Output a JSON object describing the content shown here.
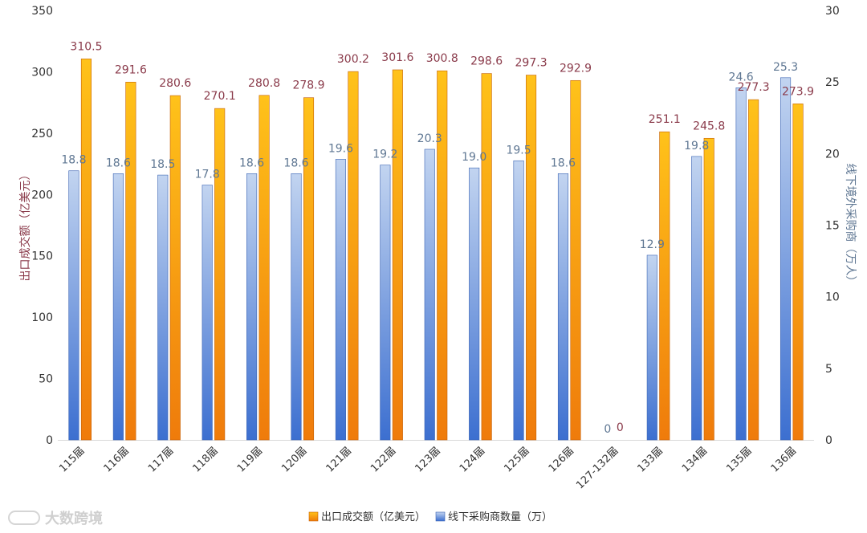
{
  "chart_data": {
    "type": "bar",
    "categories": [
      "115届",
      "116届",
      "117届",
      "118届",
      "119届",
      "120届",
      "121届",
      "122届",
      "123届",
      "124届",
      "125届",
      "126届",
      "127-132届",
      "133届",
      "134届",
      "135届",
      "136届"
    ],
    "series": [
      {
        "name": "线下采购商数量（万）",
        "axis": "right",
        "color": "#4f7fd3",
        "values": [
          18.8,
          18.6,
          18.5,
          17.8,
          18.6,
          18.6,
          19.6,
          19.2,
          20.3,
          19.0,
          19.5,
          18.6,
          0,
          12.9,
          19.8,
          24.6,
          25.3
        ],
        "labels": [
          "18.8",
          "18.6",
          "18.5",
          "17.8",
          "18.6",
          "18.6",
          "19.6",
          "19.2",
          "20.3",
          "19.0",
          "19.5",
          "18.6",
          "0",
          "12.9",
          "19.8",
          "24.6",
          "25.3"
        ]
      },
      {
        "name": "出口成交额（亿美元）",
        "axis": "left",
        "color": "#f39c12",
        "values": [
          310.5,
          291.6,
          280.6,
          270.1,
          280.8,
          278.9,
          300.2,
          301.6,
          300.8,
          298.6,
          297.3,
          292.9,
          0,
          251.1,
          245.8,
          277.3,
          273.9
        ],
        "labels": [
          "310.5",
          "291.6",
          "280.6",
          "270.1",
          "280.8",
          "278.9",
          "300.2",
          "301.6",
          "300.8",
          "298.6",
          "297.3",
          "292.9",
          "0",
          "251.1",
          "245.8",
          "277.3",
          "273.9"
        ]
      }
    ],
    "ylabel_left": "出口成交额（亿美元）",
    "ylabel_right": "线下境外采购商（万人）",
    "ylim_left": [
      0,
      350
    ],
    "ylim_right": [
      0,
      30
    ],
    "yticks_left": [
      "0",
      "50",
      "100",
      "150",
      "200",
      "250",
      "300",
      "350"
    ],
    "yticks_right": [
      "0",
      "5",
      "10",
      "15",
      "20",
      "25",
      "30"
    ],
    "legend": [
      "出口成交额（亿美元）",
      "线下采购商数量（万）"
    ],
    "legend_position": "bottom",
    "grid": false
  },
  "watermark": "大数跨境"
}
